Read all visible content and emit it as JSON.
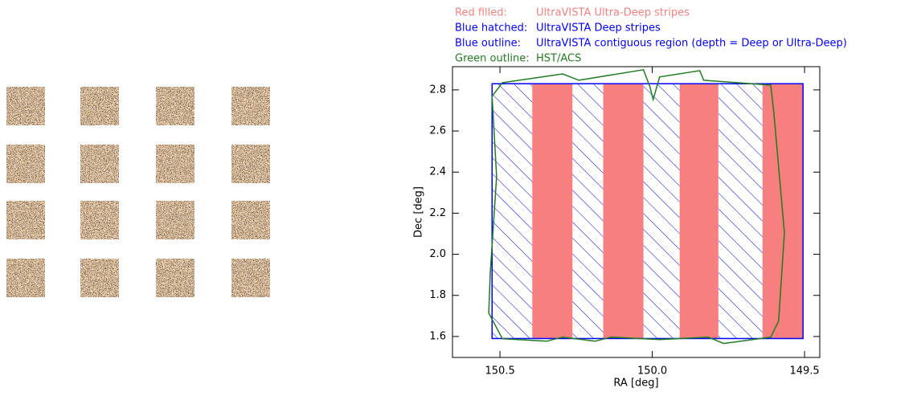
{
  "chart_data": {
    "type": "footprint",
    "legend": [
      {
        "label": "Red filled:",
        "text": "UltraVISTA Ultra-Deep stripes",
        "color": "#f77f7f"
      },
      {
        "label": "Blue hatched:",
        "text": "UltraVISTA Deep stripes",
        "color": "#0000ff"
      },
      {
        "label": "Blue outline:",
        "text": "UltraVISTA contiguous region (depth = Deep or Ultra-Deep)",
        "color": "#0000ff"
      },
      {
        "label": "Green outline:",
        "text": "HST/ACS",
        "color": "#1e7d1e"
      }
    ],
    "x_label": "RA [deg]",
    "y_label": "Dec [deg]",
    "xlim": [
      150.656,
      149.45
    ],
    "ylim": [
      1.498,
      2.913
    ],
    "xticks": [
      150.5,
      {
        "value": 150,
        "label": "150.0"
      },
      149.5
    ],
    "yticks": [
      1.6,
      1.8,
      {
        "value": 2,
        "label": "2.0"
      },
      2.2,
      2.4,
      2.6,
      2.8
    ],
    "deep_stripes": [
      [
        150.526,
        150.394
      ],
      [
        150.262,
        150.161
      ],
      [
        150.029,
        149.91
      ],
      [
        149.783,
        149.638
      ]
    ],
    "ultra_deep_stripes": [
      [
        150.394,
        150.262
      ],
      [
        150.161,
        150.029
      ],
      [
        149.91,
        149.783
      ],
      [
        149.638,
        149.505
      ]
    ],
    "contiguous_region": {
      "ra": [
        150.526,
        149.505
      ],
      "dec": [
        1.59,
        2.83
      ]
    },
    "acs_outline": {
      "ra": [
        150.526,
        150.492,
        150.294,
        150.241,
        150.029,
        150.008,
        149.997,
        149.976,
        149.844,
        149.831,
        149.611,
        149.601,
        149.566,
        149.585,
        149.611,
        149.765,
        149.817,
        149.976,
        150.135,
        150.188,
        150.294,
        150.347,
        150.492,
        150.537,
        150.532,
        150.511,
        150.526
      ],
      "dec": [
        2.769,
        2.835,
        2.878,
        2.847,
        2.898,
        2.816,
        2.753,
        2.863,
        2.894,
        2.847,
        2.823,
        2.691,
        2.105,
        1.675,
        1.597,
        1.566,
        1.597,
        1.585,
        1.597,
        1.577,
        1.597,
        1.577,
        1.589,
        1.714,
        1.909,
        2.378,
        2.769
      ]
    }
  }
}
